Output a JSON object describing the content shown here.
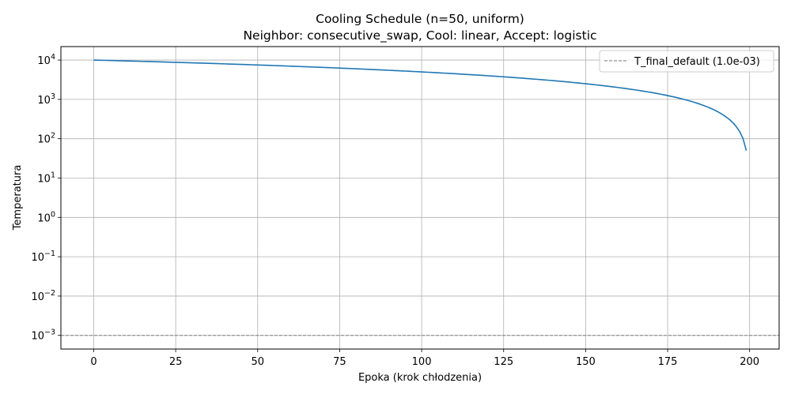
{
  "chart_data": {
    "type": "line",
    "title": "Cooling Schedule (n=50, uniform)",
    "subtitle": "Neighbor: consecutive_swap, Cool: linear, Accept: logistic",
    "xlabel": "Epoka (krok chłodzenia)",
    "ylabel": "Temperatura",
    "xlim": [
      -10,
      209
    ],
    "ylim": [
      0.00045,
      22000
    ],
    "yscale": "log",
    "grid": true,
    "legend_position": "top-right",
    "x_ticks": [
      0,
      25,
      50,
      75,
      100,
      125,
      150,
      175,
      200
    ],
    "y_ticks": [
      {
        "value": 0.001,
        "base": "10",
        "exp": "−3"
      },
      {
        "value": 0.01,
        "base": "10",
        "exp": "−2"
      },
      {
        "value": 0.1,
        "base": "10",
        "exp": "−1"
      },
      {
        "value": 1,
        "base": "10",
        "exp": "0"
      },
      {
        "value": 10,
        "base": "10",
        "exp": "1"
      },
      {
        "value": 100,
        "base": "10",
        "exp": "2"
      },
      {
        "value": 1000,
        "base": "10",
        "exp": "3"
      },
      {
        "value": 10000,
        "base": "10",
        "exp": "4"
      }
    ],
    "series": [
      {
        "color": "#1f77b4",
        "linear_schedule": {
          "start": 10000,
          "step": 50,
          "x_start": 0,
          "x_end": 199
        }
      }
    ],
    "reference_lines": [
      {
        "name": "T_final_default (1.0e-03)",
        "y": 0.001,
        "color": "#808080",
        "style": "dashed"
      }
    ]
  }
}
